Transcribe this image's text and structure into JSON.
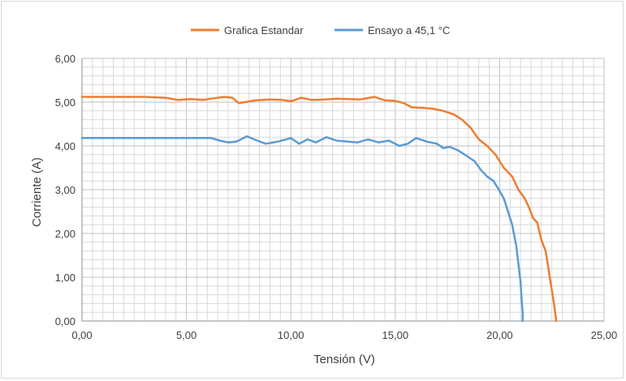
{
  "chart_data": {
    "type": "line",
    "title": "",
    "xlabel": "Tensión (V)",
    "ylabel": "Corriente (A)",
    "xlim": [
      0,
      25
    ],
    "ylim": [
      0,
      6
    ],
    "x_ticks": [
      "0,00",
      "5,00",
      "10,00",
      "15,00",
      "20,00",
      "25,00"
    ],
    "y_ticks": [
      "0,00",
      "1,00",
      "2,00",
      "3,00",
      "4,00",
      "5,00",
      "6,00"
    ],
    "grid": true,
    "legend_position": "top",
    "series": [
      {
        "name": "Grafica Estandar",
        "color": "#ED7D31",
        "points": [
          [
            0,
            5.12
          ],
          [
            3.0,
            5.12
          ],
          [
            4.0,
            5.1
          ],
          [
            4.6,
            5.05
          ],
          [
            5.2,
            5.07
          ],
          [
            5.8,
            5.05
          ],
          [
            6.2,
            5.08
          ],
          [
            6.8,
            5.12
          ],
          [
            7.2,
            5.1
          ],
          [
            7.5,
            4.98
          ],
          [
            7.8,
            5.0
          ],
          [
            8.3,
            5.04
          ],
          [
            9.0,
            5.06
          ],
          [
            9.6,
            5.05
          ],
          [
            10.0,
            5.02
          ],
          [
            10.5,
            5.1
          ],
          [
            11.0,
            5.05
          ],
          [
            11.6,
            5.06
          ],
          [
            12.2,
            5.08
          ],
          [
            12.8,
            5.07
          ],
          [
            13.3,
            5.06
          ],
          [
            14.0,
            5.12
          ],
          [
            14.5,
            5.04
          ],
          [
            15.0,
            5.03
          ],
          [
            15.4,
            4.98
          ],
          [
            15.8,
            4.88
          ],
          [
            16.3,
            4.87
          ],
          [
            16.8,
            4.85
          ],
          [
            17.3,
            4.8
          ],
          [
            17.8,
            4.72
          ],
          [
            18.2,
            4.6
          ],
          [
            18.6,
            4.42
          ],
          [
            19.0,
            4.15
          ],
          [
            19.4,
            4.0
          ],
          [
            19.8,
            3.8
          ],
          [
            20.2,
            3.5
          ],
          [
            20.6,
            3.3
          ],
          [
            20.9,
            3.0
          ],
          [
            21.2,
            2.8
          ],
          [
            21.4,
            2.6
          ],
          [
            21.6,
            2.35
          ],
          [
            21.8,
            2.25
          ],
          [
            22.0,
            1.85
          ],
          [
            22.2,
            1.6
          ],
          [
            22.3,
            1.3
          ],
          [
            22.4,
            1.0
          ],
          [
            22.5,
            0.7
          ],
          [
            22.6,
            0.4
          ],
          [
            22.65,
            0.2
          ],
          [
            22.7,
            0.05
          ],
          [
            22.7,
            0
          ]
        ]
      },
      {
        "name": "Ensayo a 45,1 °C",
        "color": "#5B9BD5",
        "points": [
          [
            0,
            4.18
          ],
          [
            6.2,
            4.18
          ],
          [
            6.6,
            4.12
          ],
          [
            7.0,
            4.08
          ],
          [
            7.4,
            4.1
          ],
          [
            7.9,
            4.22
          ],
          [
            8.4,
            4.12
          ],
          [
            8.8,
            4.05
          ],
          [
            9.4,
            4.1
          ],
          [
            10.0,
            4.18
          ],
          [
            10.4,
            4.05
          ],
          [
            10.8,
            4.15
          ],
          [
            11.2,
            4.08
          ],
          [
            11.7,
            4.2
          ],
          [
            12.2,
            4.12
          ],
          [
            12.7,
            4.1
          ],
          [
            13.2,
            4.08
          ],
          [
            13.7,
            4.15
          ],
          [
            14.2,
            4.08
          ],
          [
            14.7,
            4.12
          ],
          [
            15.2,
            4.0
          ],
          [
            15.6,
            4.05
          ],
          [
            16.0,
            4.18
          ],
          [
            16.5,
            4.1
          ],
          [
            17.0,
            4.05
          ],
          [
            17.3,
            3.95
          ],
          [
            17.6,
            3.98
          ],
          [
            18.0,
            3.9
          ],
          [
            18.4,
            3.78
          ],
          [
            18.8,
            3.65
          ],
          [
            19.1,
            3.45
          ],
          [
            19.4,
            3.3
          ],
          [
            19.7,
            3.2
          ],
          [
            19.9,
            3.05
          ],
          [
            20.2,
            2.8
          ],
          [
            20.4,
            2.5
          ],
          [
            20.6,
            2.2
          ],
          [
            20.8,
            1.7
          ],
          [
            20.9,
            1.3
          ],
          [
            21.0,
            0.9
          ],
          [
            21.05,
            0.5
          ],
          [
            21.1,
            0.2
          ],
          [
            21.1,
            0.05
          ],
          [
            21.1,
            0
          ]
        ]
      }
    ]
  }
}
